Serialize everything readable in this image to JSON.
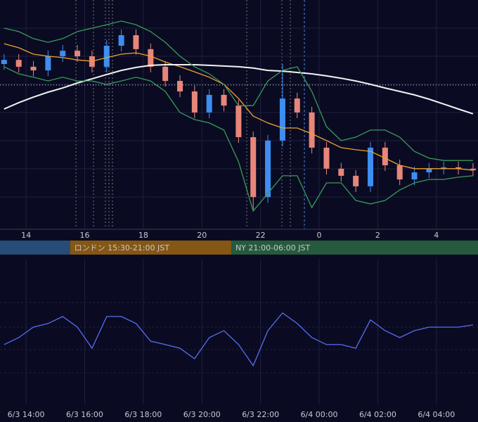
{
  "chart_data": [
    {
      "type": "candlestick",
      "xlim": [
        13.11,
        29.42
      ],
      "ylim": [
        0,
        100
      ],
      "xticks": [
        14,
        16,
        18,
        20,
        22,
        {
          "value": 24,
          "label": "0"
        },
        {
          "value": 26,
          "label": "2"
        },
        {
          "value": 28,
          "label": "4"
        }
      ],
      "yticks": [
        87.7,
        75.4,
        63.1,
        50.8,
        38.5,
        26.2,
        13.8
      ],
      "grid": true,
      "level": 62.8,
      "x": [
        13.25,
        13.75,
        14.25,
        14.75,
        15.25,
        15.75,
        16.25,
        16.75,
        17.25,
        17.75,
        18.25,
        18.75,
        19.25,
        19.75,
        20.25,
        20.75,
        21.25,
        21.75,
        22.25,
        22.75,
        23.25,
        23.75,
        24.25,
        24.75,
        25.25,
        25.75,
        26.25,
        26.75,
        27.25,
        27.75,
        28.25,
        28.75,
        29.25
      ],
      "up_color": "#3d8ef0",
      "down_color": "#e8867a",
      "open": [
        72,
        73.8,
        70.8,
        69.2,
        75.4,
        77.8,
        75.4,
        70.8,
        80,
        84.6,
        78.5,
        70.8,
        64.6,
        60,
        50.8,
        58.5,
        53.8,
        40,
        13.8,
        38.5,
        56.9,
        50.8,
        35.4,
        26.2,
        23.1,
        18.5,
        35.4,
        27.7,
        21.5,
        24.6,
        26.2,
        26.8,
        26.2
      ],
      "high": [
        76.3,
        76.3,
        73.3,
        77.9,
        80.3,
        80.3,
        77.9,
        82.5,
        87.1,
        87.1,
        81,
        73.3,
        67.1,
        62.5,
        61,
        61,
        56.3,
        42.5,
        41,
        72,
        59.4,
        53.3,
        37.9,
        28.7,
        25.6,
        37.9,
        37.9,
        30.2,
        27.1,
        28.7,
        29.3,
        29.3,
        28.7
      ],
      "low": [
        69.5,
        68.3,
        66.7,
        66.7,
        72.9,
        72.9,
        68.3,
        68.3,
        77.5,
        76,
        68.3,
        62.1,
        57.5,
        48.3,
        48.3,
        51.3,
        37.5,
        7.7,
        11.3,
        36,
        48.3,
        32.9,
        23.7,
        20.6,
        16,
        16,
        25.2,
        19,
        19,
        22.1,
        23.7,
        23.7,
        23
      ],
      "close": [
        73.8,
        70.8,
        69.2,
        75.4,
        77.8,
        75.4,
        70.8,
        80,
        84.6,
        78.5,
        70.8,
        64.6,
        60,
        50.8,
        58.5,
        53.8,
        40,
        13.8,
        38.5,
        56.9,
        50.8,
        35.4,
        26.2,
        23.1,
        18.5,
        35.4,
        27.7,
        21.5,
        24.6,
        26.2,
        26.8,
        26.2,
        25.5
      ],
      "series": [
        {
          "color": "#f0a030",
          "values": [
            80.9,
            79.1,
            76.3,
            75.4,
            74.8,
            73.8,
            73.2,
            74.8,
            76.3,
            76.9,
            75.4,
            72.9,
            70.8,
            68.6,
            66.2,
            63.1,
            56.9,
            49.2,
            46.2,
            44,
            44,
            41.5,
            38.5,
            35.4,
            34.5,
            33.8,
            30.8,
            27.7,
            26.2,
            26.2,
            26.2,
            26.2,
            25.5
          ]
        },
        {
          "color": "#f2f2f2",
          "values": [
            52.3,
            55.1,
            57.5,
            59.7,
            61.5,
            63.7,
            65.5,
            67.4,
            69.2,
            70.5,
            71.4,
            71.7,
            71.7,
            71.7,
            71.4,
            71.1,
            70.8,
            70.2,
            69.2,
            68.9,
            68.3,
            67.7,
            66.8,
            65.8,
            64.6,
            63.1,
            61.5,
            60,
            58.5,
            56.6,
            54.5,
            52.3,
            50.2
          ]
        },
        {
          "color": "#3a9a5a",
          "values": [
            87.7,
            86.2,
            83.1,
            81.5,
            83.1,
            86.2,
            87.7,
            89.2,
            90.8,
            89.2,
            86.2,
            81.5,
            75.4,
            70.8,
            67.7,
            63.1,
            53.8,
            53.8,
            64.6,
            69.2,
            70.8,
            60,
            44.6,
            38.5,
            40,
            43.1,
            43.1,
            40,
            33.8,
            30.8,
            29.8,
            29.8,
            29.8
          ]
        },
        {
          "color": "#3a9a5a",
          "values": [
            70.8,
            67.7,
            66.2,
            64.6,
            66.2,
            64.6,
            64.6,
            63.1,
            64.6,
            66.2,
            64.6,
            60,
            50.8,
            47.7,
            46.2,
            43.1,
            29.2,
            7.7,
            15.4,
            23.1,
            23.1,
            9.2,
            20,
            20,
            12.3,
            10.8,
            12.3,
            16.9,
            20,
            21.5,
            21.5,
            22.5,
            23.1
          ]
        }
      ],
      "sessions": [
        {
          "color": "#264c78"
        },
        {
          "start": 15.5,
          "label": "ロンドン 15:30-21:00 JST",
          "color": "#855714"
        },
        {
          "start": 21,
          "label": "NY 21:00-06:00 JST",
          "color": "#265a3c"
        }
      ]
    },
    {
      "type": "line",
      "xlim": [
        13.11,
        29.42
      ],
      "ylim": [
        0,
        100
      ],
      "yticks": [
        70,
        53.1,
        37.7,
        21.7
      ],
      "grid": true,
      "xticks": [
        {
          "value": 14,
          "label": "6/3 14:00"
        },
        {
          "value": 16,
          "label": "6/3 16:00"
        },
        {
          "value": 18,
          "label": "6/3 18:00"
        },
        {
          "value": 20,
          "label": "6/3 20:00"
        },
        {
          "value": 22,
          "label": "6/3 22:00"
        },
        {
          "value": 24,
          "label": "6/4 00:00"
        },
        {
          "value": 26,
          "label": "6/4 02:00"
        },
        {
          "value": 28,
          "label": "6/4 04:00"
        }
      ],
      "x": [
        13.25,
        13.75,
        14.25,
        14.75,
        15.25,
        15.75,
        16.25,
        16.75,
        17.25,
        17.75,
        18.25,
        18.75,
        19.25,
        19.75,
        20.25,
        20.75,
        21.25,
        21.75,
        22.25,
        22.75,
        23.25,
        23.75,
        24.25,
        24.75,
        25.25,
        25.75,
        26.25,
        26.75,
        27.25,
        27.75,
        28.25,
        28.75,
        29.25
      ],
      "color": "#5b6cf0",
      "values": [
        41.1,
        45.9,
        53.1,
        55.6,
        60.4,
        53.1,
        38.6,
        60.4,
        60.4,
        55.6,
        43.5,
        41.1,
        38.6,
        31.4,
        45.9,
        50.7,
        41.1,
        26.6,
        50.7,
        62.8,
        55.6,
        45.9,
        41.1,
        41.1,
        38.6,
        58,
        50.7,
        45.9,
        50.7,
        53.1,
        53.1,
        53.1,
        54.6
      ]
    }
  ]
}
